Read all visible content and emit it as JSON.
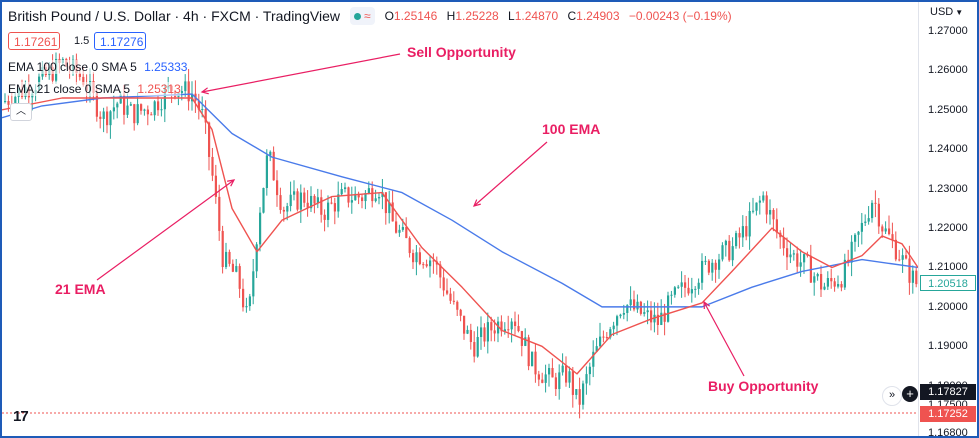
{
  "header": {
    "symbol_title": "British Pound / U.S. Dollar · 4h · FXCM · TradingView",
    "ohlc": {
      "o_label": "O",
      "o_value": "1.25146",
      "h_label": "H",
      "h_value": "1.25228",
      "l_label": "L",
      "l_value": "1.24870",
      "c_label": "C",
      "c_value": "1.24903",
      "change": "−0.00243 (−0.19%)"
    },
    "market_dot_icon": "green-dot-icon",
    "wave_icon": "wave-icon"
  },
  "quote": {
    "bid": "1.17261",
    "spread": "1.5",
    "ask": "1.17276"
  },
  "indicators": [
    {
      "label": "EMA 100 close 0 SMA 5",
      "value": "1.25333",
      "color": "#2962ff"
    },
    {
      "label": "EMA 21 close 0 SMA 5",
      "value": "1.25313",
      "color": "#ef5350"
    }
  ],
  "annotations": {
    "sell": "Sell Opportunity",
    "ema100": "100 EMA",
    "ema21": "21 EMA",
    "buy": "Buy Opportunity"
  },
  "price_axis": {
    "currency": "USD",
    "ticks": [
      "1.27000",
      "1.26000",
      "1.25000",
      "1.24000",
      "1.23000",
      "1.22000",
      "1.21000",
      "1.20000",
      "1.19000",
      "1.18000",
      "1.17500",
      "1.16800"
    ],
    "last_price": "1.20518",
    "crosshair_price": "1.17827",
    "bid_line_price": "1.17252"
  },
  "colors": {
    "up": "#26a69a",
    "down": "#ef5350",
    "ema100": "#4a7bea",
    "ema21": "#ef5350",
    "annotation": "#e91e63",
    "frame": "#1e5bb8"
  },
  "chart_data": {
    "type": "line",
    "price_range": [
      1.166,
      1.275
    ],
    "ema100": [
      [
        0,
        1.248
      ],
      [
        40,
        1.251
      ],
      [
        100,
        1.253
      ],
      [
        190,
        1.254
      ],
      [
        230,
        1.244
      ],
      [
        270,
        1.238
      ],
      [
        340,
        1.233
      ],
      [
        400,
        1.229
      ],
      [
        450,
        1.222
      ],
      [
        500,
        1.214
      ],
      [
        560,
        1.206
      ],
      [
        600,
        1.2
      ],
      [
        650,
        1.2
      ],
      [
        700,
        1.2
      ],
      [
        750,
        1.205
      ],
      [
        800,
        1.209
      ],
      [
        860,
        1.212
      ],
      [
        916,
        1.21
      ]
    ],
    "ema21": [
      [
        0,
        1.25
      ],
      [
        60,
        1.253
      ],
      [
        120,
        1.253
      ],
      [
        190,
        1.253
      ],
      [
        210,
        1.245
      ],
      [
        230,
        1.225
      ],
      [
        255,
        1.214
      ],
      [
        280,
        1.222
      ],
      [
        330,
        1.228
      ],
      [
        380,
        1.229
      ],
      [
        420,
        1.215
      ],
      [
        460,
        1.205
      ],
      [
        500,
        1.194
      ],
      [
        540,
        1.19
      ],
      [
        575,
        1.183
      ],
      [
        610,
        1.193
      ],
      [
        650,
        1.197
      ],
      [
        700,
        1.201
      ],
      [
        730,
        1.209
      ],
      [
        770,
        1.22
      ],
      [
        800,
        1.214
      ],
      [
        830,
        1.21
      ],
      [
        860,
        1.213
      ],
      [
        880,
        1.218
      ],
      [
        900,
        1.216
      ],
      [
        916,
        1.21
      ]
    ],
    "close": [
      [
        0,
        1.252
      ],
      [
        20,
        1.255
      ],
      [
        40,
        1.258
      ],
      [
        60,
        1.262
      ],
      [
        80,
        1.258
      ],
      [
        100,
        1.248
      ],
      [
        115,
        1.252
      ],
      [
        130,
        1.249
      ],
      [
        150,
        1.251
      ],
      [
        170,
        1.256
      ],
      [
        190,
        1.254
      ],
      [
        200,
        1.248
      ],
      [
        210,
        1.232
      ],
      [
        220,
        1.212
      ],
      [
        235,
        1.207
      ],
      [
        245,
        1.196
      ],
      [
        255,
        1.222
      ],
      [
        265,
        1.239
      ],
      [
        280,
        1.225
      ],
      [
        300,
        1.228
      ],
      [
        320,
        1.224
      ],
      [
        340,
        1.228
      ],
      [
        360,
        1.228
      ],
      [
        375,
        1.231
      ],
      [
        390,
        1.221
      ],
      [
        410,
        1.214
      ],
      [
        430,
        1.212
      ],
      [
        450,
        1.2
      ],
      [
        470,
        1.19
      ],
      [
        490,
        1.195
      ],
      [
        510,
        1.198
      ],
      [
        530,
        1.185
      ],
      [
        550,
        1.181
      ],
      [
        565,
        1.183
      ],
      [
        575,
        1.175
      ],
      [
        590,
        1.187
      ],
      [
        605,
        1.195
      ],
      [
        620,
        1.201
      ],
      [
        640,
        1.198
      ],
      [
        655,
        1.196
      ],
      [
        670,
        1.202
      ],
      [
        690,
        1.207
      ],
      [
        710,
        1.212
      ],
      [
        730,
        1.215
      ],
      [
        745,
        1.221
      ],
      [
        760,
        1.228
      ],
      [
        775,
        1.218
      ],
      [
        790,
        1.213
      ],
      [
        805,
        1.21
      ],
      [
        820,
        1.205
      ],
      [
        840,
        1.208
      ],
      [
        860,
        1.221
      ],
      [
        870,
        1.228
      ],
      [
        880,
        1.22
      ],
      [
        895,
        1.214
      ],
      [
        905,
        1.209
      ],
      [
        916,
        1.205
      ]
    ]
  }
}
